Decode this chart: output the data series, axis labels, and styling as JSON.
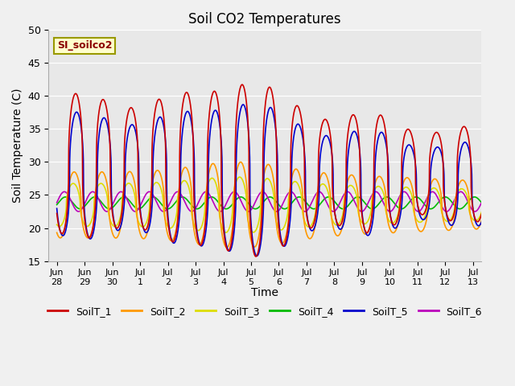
{
  "title": "Soil CO2 Temperatures",
  "ylabel": "Soil Temperature (C)",
  "xlabel": "Time",
  "legend_label": "SI_soilco2",
  "ylim": [
    15,
    50
  ],
  "series": {
    "SoilT_1": {
      "color": "#cc0000",
      "lw": 1.2
    },
    "SoilT_2": {
      "color": "#ff9900",
      "lw": 1.2
    },
    "SoilT_3": {
      "color": "#dddd00",
      "lw": 1.2
    },
    "SoilT_4": {
      "color": "#00bb00",
      "lw": 1.2
    },
    "SoilT_5": {
      "color": "#0000cc",
      "lw": 1.2
    },
    "SoilT_6": {
      "color": "#bb00bb",
      "lw": 1.2
    }
  },
  "xtick_positions": [
    0,
    1,
    2,
    3,
    4,
    5,
    6,
    7,
    8,
    9,
    10,
    11,
    12,
    13,
    14,
    15
  ],
  "xtick_labels": [
    "Jun 28",
    "Jun 29",
    "Jun 30",
    "Jul 1",
    "Jul 2",
    "Jul 3",
    "Jul 4",
    "Jul 5",
    "Jul 6",
    "Jul 7",
    "Jul 8",
    "Jul 9",
    "Jul 10",
    "Jul 11",
    "Jul 12",
    "Jul 13"
  ],
  "ytick_positions": [
    15,
    20,
    25,
    30,
    35,
    40,
    45,
    50
  ],
  "n_days": 15.5,
  "figsize": [
    6.4,
    4.8
  ],
  "dpi": 100
}
